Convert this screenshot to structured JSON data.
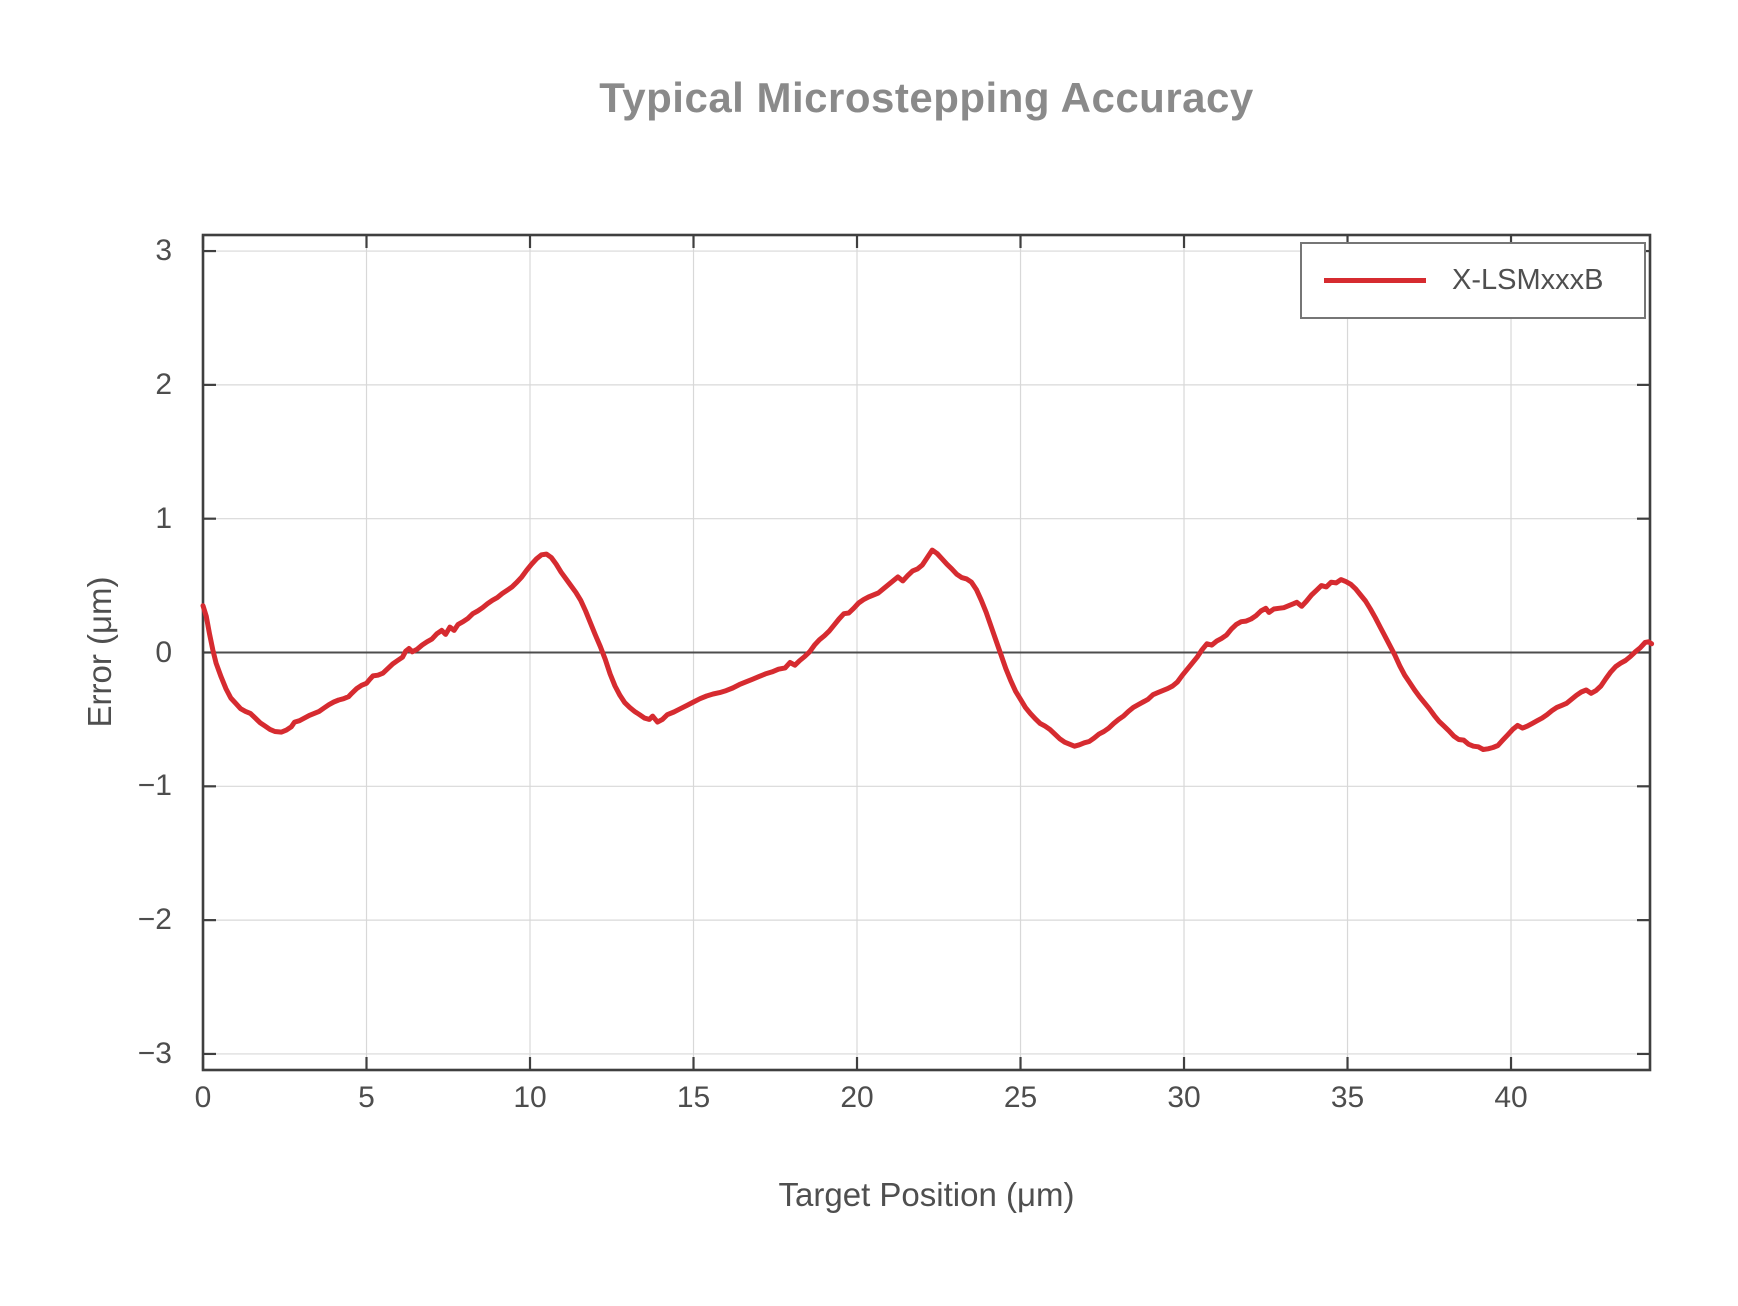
{
  "title": "Typical Microstepping Accuracy",
  "colors": {
    "series_red": "#d62b30",
    "frame": "#3f3f3f",
    "grid": "#d8d8d8",
    "zero_line": "#4d4d4d",
    "title_text": "#8a8a8a",
    "tick_text": "#4d4d4d",
    "legend_border": "#767676",
    "background": "#ffffff"
  },
  "chart_data": {
    "type": "line",
    "title": "Typical Microstepping Accuracy",
    "xlabel": "Target Position (μm)",
    "ylabel": "Error (μm)",
    "xlim": [
      0,
      44.25
    ],
    "ylim": [
      -3.12,
      3.12
    ],
    "grid": "on",
    "zero_line": true,
    "x_ticks": {
      "values": [
        0,
        5,
        10,
        15,
        20,
        25,
        30,
        35,
        40
      ],
      "labels": [
        "0",
        "5",
        "10",
        "15",
        "20",
        "25",
        "30",
        "35",
        "40"
      ]
    },
    "y_ticks": {
      "values": [
        -3,
        -2,
        -1,
        0,
        1,
        2,
        3
      ],
      "labels": [
        "−3",
        "−2",
        "−1",
        "0",
        "1",
        "2",
        "3"
      ]
    },
    "legend": {
      "position": "top-right",
      "entries": [
        {
          "label": "X-LSMxxxB",
          "color": "#d62b30"
        }
      ]
    },
    "series": [
      {
        "name": "X-LSMxxxB",
        "color": "#d62b30",
        "points": [
          [
            0.0,
            0.35
          ],
          [
            0.1,
            0.27
          ],
          [
            0.2,
            0.14
          ],
          [
            0.3,
            0.02
          ],
          [
            0.4,
            -0.08
          ],
          [
            0.55,
            -0.18
          ],
          [
            0.7,
            -0.27
          ],
          [
            0.85,
            -0.34
          ],
          [
            1.0,
            -0.38
          ],
          [
            1.15,
            -0.42
          ],
          [
            1.3,
            -0.44
          ],
          [
            1.45,
            -0.455
          ],
          [
            1.6,
            -0.49
          ],
          [
            1.75,
            -0.525
          ],
          [
            1.9,
            -0.55
          ],
          [
            2.05,
            -0.575
          ],
          [
            2.2,
            -0.59
          ],
          [
            2.4,
            -0.595
          ],
          [
            2.55,
            -0.58
          ],
          [
            2.7,
            -0.555
          ],
          [
            2.8,
            -0.52
          ],
          [
            2.95,
            -0.51
          ],
          [
            3.1,
            -0.49
          ],
          [
            3.25,
            -0.47
          ],
          [
            3.4,
            -0.455
          ],
          [
            3.55,
            -0.44
          ],
          [
            3.7,
            -0.415
          ],
          [
            3.85,
            -0.39
          ],
          [
            4.0,
            -0.37
          ],
          [
            4.15,
            -0.355
          ],
          [
            4.3,
            -0.345
          ],
          [
            4.45,
            -0.33
          ],
          [
            4.55,
            -0.305
          ],
          [
            4.7,
            -0.27
          ],
          [
            4.85,
            -0.245
          ],
          [
            5.0,
            -0.23
          ],
          [
            5.1,
            -0.2
          ],
          [
            5.2,
            -0.175
          ],
          [
            5.35,
            -0.17
          ],
          [
            5.5,
            -0.155
          ],
          [
            5.65,
            -0.12
          ],
          [
            5.8,
            -0.085
          ],
          [
            5.95,
            -0.06
          ],
          [
            6.1,
            -0.035
          ],
          [
            6.2,
            0.01
          ],
          [
            6.3,
            0.03
          ],
          [
            6.4,
            0.005
          ],
          [
            6.55,
            0.025
          ],
          [
            6.7,
            0.055
          ],
          [
            6.85,
            0.08
          ],
          [
            7.0,
            0.1
          ],
          [
            7.15,
            0.14
          ],
          [
            7.3,
            0.165
          ],
          [
            7.42,
            0.135
          ],
          [
            7.55,
            0.19
          ],
          [
            7.68,
            0.165
          ],
          [
            7.8,
            0.21
          ],
          [
            7.95,
            0.23
          ],
          [
            8.1,
            0.255
          ],
          [
            8.25,
            0.29
          ],
          [
            8.4,
            0.31
          ],
          [
            8.55,
            0.335
          ],
          [
            8.7,
            0.365
          ],
          [
            8.85,
            0.39
          ],
          [
            9.0,
            0.41
          ],
          [
            9.15,
            0.44
          ],
          [
            9.3,
            0.465
          ],
          [
            9.45,
            0.49
          ],
          [
            9.6,
            0.525
          ],
          [
            9.75,
            0.565
          ],
          [
            9.9,
            0.615
          ],
          [
            10.05,
            0.66
          ],
          [
            10.2,
            0.7
          ],
          [
            10.35,
            0.73
          ],
          [
            10.5,
            0.735
          ],
          [
            10.65,
            0.71
          ],
          [
            10.8,
            0.66
          ],
          [
            10.95,
            0.6
          ],
          [
            11.1,
            0.55
          ],
          [
            11.25,
            0.5
          ],
          [
            11.4,
            0.45
          ],
          [
            11.55,
            0.39
          ],
          [
            11.7,
            0.31
          ],
          [
            11.85,
            0.22
          ],
          [
            12.0,
            0.13
          ],
          [
            12.15,
            0.045
          ],
          [
            12.3,
            -0.05
          ],
          [
            12.45,
            -0.16
          ],
          [
            12.6,
            -0.25
          ],
          [
            12.75,
            -0.32
          ],
          [
            12.9,
            -0.375
          ],
          [
            13.05,
            -0.41
          ],
          [
            13.2,
            -0.44
          ],
          [
            13.35,
            -0.465
          ],
          [
            13.5,
            -0.49
          ],
          [
            13.65,
            -0.5
          ],
          [
            13.75,
            -0.475
          ],
          [
            13.9,
            -0.52
          ],
          [
            14.05,
            -0.5
          ],
          [
            14.2,
            -0.465
          ],
          [
            14.4,
            -0.445
          ],
          [
            14.6,
            -0.42
          ],
          [
            14.8,
            -0.395
          ],
          [
            15.0,
            -0.37
          ],
          [
            15.2,
            -0.345
          ],
          [
            15.4,
            -0.325
          ],
          [
            15.6,
            -0.31
          ],
          [
            15.8,
            -0.3
          ],
          [
            16.0,
            -0.285
          ],
          [
            16.2,
            -0.265
          ],
          [
            16.4,
            -0.24
          ],
          [
            16.6,
            -0.22
          ],
          [
            16.8,
            -0.2
          ],
          [
            17.0,
            -0.18
          ],
          [
            17.2,
            -0.16
          ],
          [
            17.4,
            -0.145
          ],
          [
            17.6,
            -0.125
          ],
          [
            17.8,
            -0.115
          ],
          [
            17.95,
            -0.075
          ],
          [
            18.1,
            -0.095
          ],
          [
            18.25,
            -0.06
          ],
          [
            18.4,
            -0.03
          ],
          [
            18.55,
            0.005
          ],
          [
            18.7,
            0.055
          ],
          [
            18.85,
            0.095
          ],
          [
            19.0,
            0.125
          ],
          [
            19.15,
            0.16
          ],
          [
            19.3,
            0.205
          ],
          [
            19.45,
            0.25
          ],
          [
            19.6,
            0.29
          ],
          [
            19.75,
            0.295
          ],
          [
            19.9,
            0.33
          ],
          [
            20.05,
            0.37
          ],
          [
            20.2,
            0.395
          ],
          [
            20.35,
            0.415
          ],
          [
            20.5,
            0.43
          ],
          [
            20.65,
            0.445
          ],
          [
            20.8,
            0.475
          ],
          [
            20.95,
            0.505
          ],
          [
            21.1,
            0.535
          ],
          [
            21.25,
            0.565
          ],
          [
            21.4,
            0.535
          ],
          [
            21.55,
            0.575
          ],
          [
            21.7,
            0.61
          ],
          [
            21.85,
            0.625
          ],
          [
            22.0,
            0.655
          ],
          [
            22.15,
            0.71
          ],
          [
            22.3,
            0.765
          ],
          [
            22.45,
            0.74
          ],
          [
            22.6,
            0.7
          ],
          [
            22.75,
            0.66
          ],
          [
            22.9,
            0.625
          ],
          [
            23.05,
            0.585
          ],
          [
            23.2,
            0.56
          ],
          [
            23.35,
            0.55
          ],
          [
            23.5,
            0.525
          ],
          [
            23.65,
            0.47
          ],
          [
            23.8,
            0.39
          ],
          [
            23.95,
            0.3
          ],
          [
            24.1,
            0.195
          ],
          [
            24.25,
            0.09
          ],
          [
            24.4,
            -0.015
          ],
          [
            24.55,
            -0.12
          ],
          [
            24.7,
            -0.21
          ],
          [
            24.85,
            -0.29
          ],
          [
            25.0,
            -0.35
          ],
          [
            25.15,
            -0.41
          ],
          [
            25.3,
            -0.455
          ],
          [
            25.45,
            -0.495
          ],
          [
            25.6,
            -0.53
          ],
          [
            25.75,
            -0.55
          ],
          [
            25.9,
            -0.575
          ],
          [
            26.05,
            -0.61
          ],
          [
            26.2,
            -0.645
          ],
          [
            26.35,
            -0.67
          ],
          [
            26.5,
            -0.685
          ],
          [
            26.65,
            -0.7
          ],
          [
            26.8,
            -0.69
          ],
          [
            26.95,
            -0.675
          ],
          [
            27.1,
            -0.665
          ],
          [
            27.25,
            -0.64
          ],
          [
            27.4,
            -0.61
          ],
          [
            27.55,
            -0.59
          ],
          [
            27.7,
            -0.565
          ],
          [
            27.85,
            -0.53
          ],
          [
            28.0,
            -0.5
          ],
          [
            28.15,
            -0.475
          ],
          [
            28.3,
            -0.44
          ],
          [
            28.45,
            -0.41
          ],
          [
            28.6,
            -0.39
          ],
          [
            28.75,
            -0.37
          ],
          [
            28.9,
            -0.35
          ],
          [
            29.05,
            -0.315
          ],
          [
            29.2,
            -0.3
          ],
          [
            29.35,
            -0.285
          ],
          [
            29.5,
            -0.27
          ],
          [
            29.65,
            -0.25
          ],
          [
            29.8,
            -0.22
          ],
          [
            29.95,
            -0.17
          ],
          [
            30.1,
            -0.125
          ],
          [
            30.25,
            -0.08
          ],
          [
            30.4,
            -0.035
          ],
          [
            30.55,
            0.02
          ],
          [
            30.7,
            0.065
          ],
          [
            30.85,
            0.055
          ],
          [
            31.0,
            0.085
          ],
          [
            31.15,
            0.105
          ],
          [
            31.3,
            0.13
          ],
          [
            31.45,
            0.175
          ],
          [
            31.6,
            0.21
          ],
          [
            31.75,
            0.23
          ],
          [
            31.9,
            0.235
          ],
          [
            32.05,
            0.25
          ],
          [
            32.2,
            0.275
          ],
          [
            32.35,
            0.31
          ],
          [
            32.5,
            0.33
          ],
          [
            32.6,
            0.3
          ],
          [
            32.75,
            0.325
          ],
          [
            32.9,
            0.33
          ],
          [
            33.05,
            0.335
          ],
          [
            33.2,
            0.35
          ],
          [
            33.35,
            0.365
          ],
          [
            33.45,
            0.375
          ],
          [
            33.6,
            0.345
          ],
          [
            33.75,
            0.385
          ],
          [
            33.9,
            0.43
          ],
          [
            34.05,
            0.465
          ],
          [
            34.2,
            0.5
          ],
          [
            34.35,
            0.49
          ],
          [
            34.5,
            0.525
          ],
          [
            34.65,
            0.52
          ],
          [
            34.8,
            0.545
          ],
          [
            34.95,
            0.53
          ],
          [
            35.1,
            0.51
          ],
          [
            35.25,
            0.475
          ],
          [
            35.4,
            0.43
          ],
          [
            35.55,
            0.385
          ],
          [
            35.7,
            0.325
          ],
          [
            35.85,
            0.26
          ],
          [
            36.0,
            0.19
          ],
          [
            36.15,
            0.12
          ],
          [
            36.3,
            0.05
          ],
          [
            36.45,
            -0.02
          ],
          [
            36.6,
            -0.1
          ],
          [
            36.75,
            -0.17
          ],
          [
            36.9,
            -0.225
          ],
          [
            37.05,
            -0.28
          ],
          [
            37.2,
            -0.33
          ],
          [
            37.35,
            -0.375
          ],
          [
            37.5,
            -0.42
          ],
          [
            37.65,
            -0.47
          ],
          [
            37.8,
            -0.515
          ],
          [
            37.95,
            -0.55
          ],
          [
            38.1,
            -0.585
          ],
          [
            38.25,
            -0.625
          ],
          [
            38.4,
            -0.65
          ],
          [
            38.55,
            -0.655
          ],
          [
            38.7,
            -0.685
          ],
          [
            38.85,
            -0.7
          ],
          [
            39.0,
            -0.705
          ],
          [
            39.15,
            -0.725
          ],
          [
            39.3,
            -0.72
          ],
          [
            39.45,
            -0.71
          ],
          [
            39.6,
            -0.695
          ],
          [
            39.75,
            -0.655
          ],
          [
            39.9,
            -0.615
          ],
          [
            40.05,
            -0.575
          ],
          [
            40.2,
            -0.545
          ],
          [
            40.35,
            -0.565
          ],
          [
            40.5,
            -0.55
          ],
          [
            40.65,
            -0.53
          ],
          [
            40.8,
            -0.51
          ],
          [
            40.95,
            -0.49
          ],
          [
            41.1,
            -0.465
          ],
          [
            41.25,
            -0.435
          ],
          [
            41.4,
            -0.41
          ],
          [
            41.55,
            -0.395
          ],
          [
            41.7,
            -0.38
          ],
          [
            41.85,
            -0.35
          ],
          [
            42.0,
            -0.32
          ],
          [
            42.15,
            -0.295
          ],
          [
            42.3,
            -0.28
          ],
          [
            42.45,
            -0.305
          ],
          [
            42.6,
            -0.285
          ],
          [
            42.75,
            -0.25
          ],
          [
            42.9,
            -0.195
          ],
          [
            43.05,
            -0.145
          ],
          [
            43.2,
            -0.105
          ],
          [
            43.35,
            -0.08
          ],
          [
            43.5,
            -0.06
          ],
          [
            43.65,
            -0.03
          ],
          [
            43.8,
            0.005
          ],
          [
            43.95,
            0.035
          ],
          [
            44.1,
            0.075
          ],
          [
            44.2,
            0.08
          ],
          [
            44.3,
            0.065
          ]
        ]
      }
    ]
  }
}
